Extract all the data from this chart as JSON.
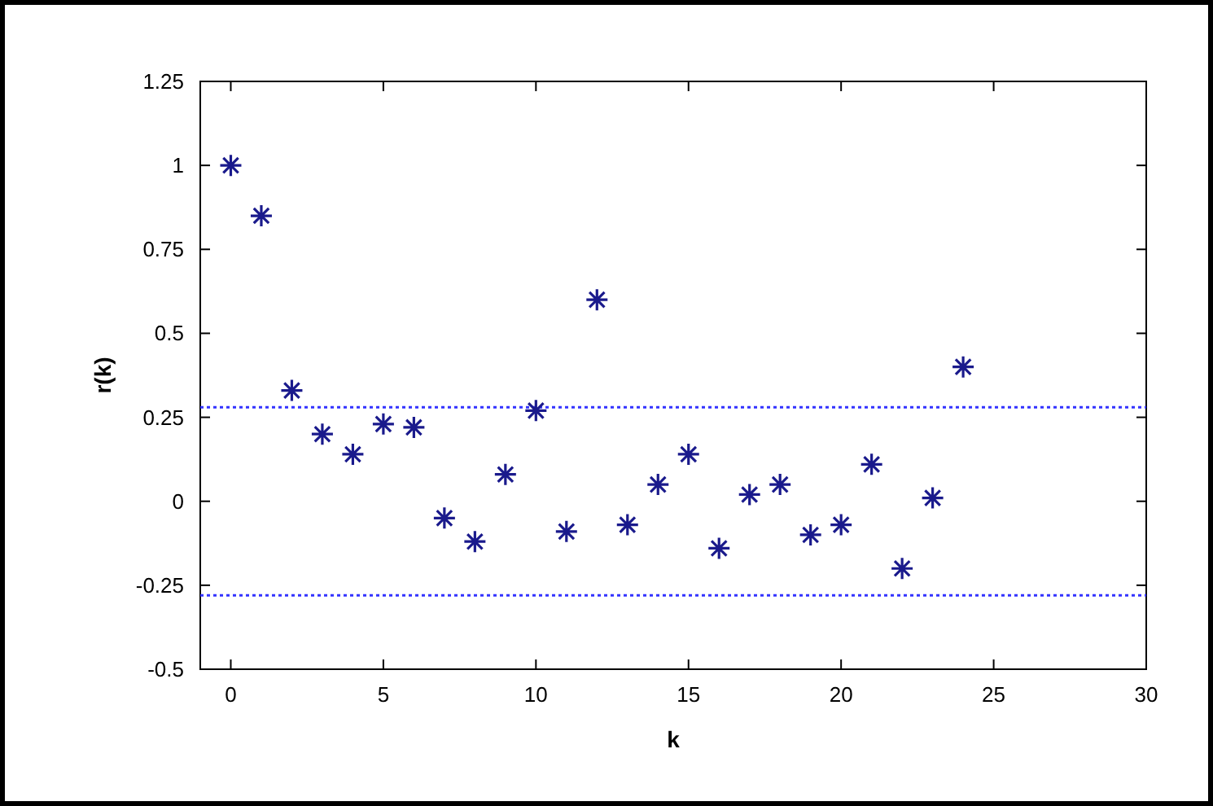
{
  "chart_data": {
    "type": "scatter",
    "xlabel": "k",
    "ylabel": "r(k)",
    "x": [
      0,
      1,
      2,
      3,
      4,
      5,
      6,
      7,
      8,
      9,
      10,
      11,
      12,
      13,
      14,
      15,
      16,
      17,
      18,
      19,
      20,
      21,
      22,
      23,
      24
    ],
    "series": [
      {
        "color": "#1a1a8c",
        "values": [
          1.0,
          0.85,
          0.33,
          0.2,
          0.14,
          0.23,
          0.22,
          -0.05,
          -0.12,
          0.08,
          0.27,
          -0.09,
          0.6,
          -0.07,
          0.05,
          0.14,
          -0.14,
          0.02,
          0.05,
          -0.1,
          -0.07,
          0.11,
          -0.2,
          0.01,
          0.4
        ]
      }
    ],
    "marker": "cross",
    "xlim": [
      -1,
      30
    ],
    "xticks": [
      0,
      5,
      10,
      15,
      20,
      25,
      30
    ],
    "ylim": [
      -0.5,
      1.25
    ],
    "yticks": [
      -0.5,
      -0.25,
      0,
      0.25,
      0.5,
      0.75,
      1,
      1.25
    ],
    "ref_lines": [
      {
        "axis": "y",
        "value": 0.28,
        "color": "#3333ff",
        "line_style": "dotted"
      },
      {
        "axis": "y",
        "value": -0.28,
        "color": "#3333ff",
        "line_style": "dotted"
      }
    ],
    "grid": false
  }
}
